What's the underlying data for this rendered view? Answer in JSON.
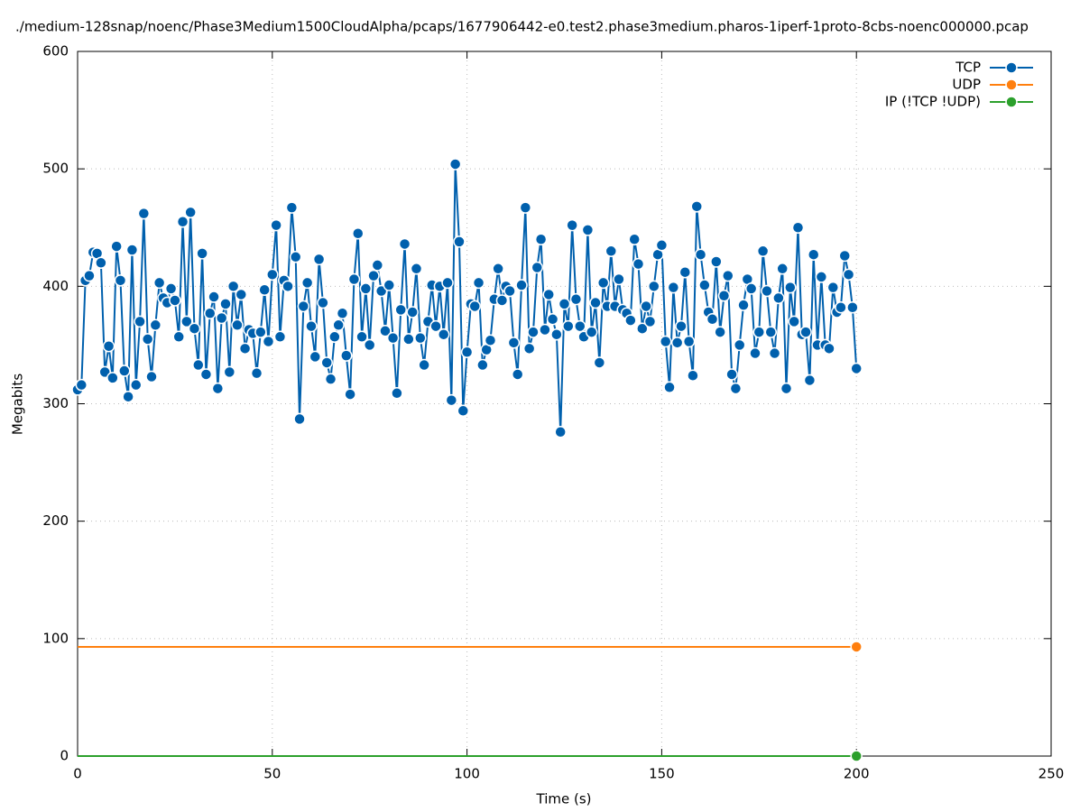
{
  "chart_data": {
    "type": "line",
    "title": "./medium-128snap/noenc/Phase3Medium1500CloudAlpha/pcaps/1677906442-e0.test2.phase3medium.pharos-1iperf-1proto-8cbs-noenc000000.pcap",
    "x_label": "Time (s)",
    "y_label": "Megabits",
    "xlim": [
      0,
      250
    ],
    "xticks": [
      0,
      50,
      100,
      150,
      200,
      250
    ],
    "ylim": [
      0,
      600
    ],
    "yticks": [
      0,
      100,
      200,
      300,
      400,
      500,
      600
    ],
    "grid": true,
    "legend": "top-right",
    "x": [
      0,
      1,
      2,
      3,
      4,
      5,
      6,
      7,
      8,
      9,
      10,
      11,
      12,
      13,
      14,
      15,
      16,
      17,
      18,
      19,
      20,
      21,
      22,
      23,
      24,
      25,
      26,
      27,
      28,
      29,
      30,
      31,
      32,
      33,
      34,
      35,
      36,
      37,
      38,
      39,
      40,
      41,
      42,
      43,
      44,
      45,
      46,
      47,
      48,
      49,
      50,
      51,
      52,
      53,
      54,
      55,
      56,
      57,
      58,
      59,
      60,
      61,
      62,
      63,
      64,
      65,
      66,
      67,
      68,
      69,
      70,
      71,
      72,
      73,
      74,
      75,
      76,
      77,
      78,
      79,
      80,
      81,
      82,
      83,
      84,
      85,
      86,
      87,
      88,
      89,
      90,
      91,
      92,
      93,
      94,
      95,
      96,
      97,
      98,
      99,
      100,
      101,
      102,
      103,
      104,
      105,
      106,
      107,
      108,
      109,
      110,
      111,
      112,
      113,
      114,
      115,
      116,
      117,
      118,
      119,
      120,
      121,
      122,
      123,
      124,
      125,
      126,
      127,
      128,
      129,
      130,
      131,
      132,
      133,
      134,
      135,
      136,
      137,
      138,
      139,
      140,
      141,
      142,
      143,
      144,
      145,
      146,
      147,
      148,
      149,
      150,
      151,
      152,
      153,
      154,
      155,
      156,
      157,
      158,
      159,
      160,
      161,
      162,
      163,
      164,
      165,
      166,
      167,
      168,
      169,
      170,
      171,
      172,
      173,
      174,
      175,
      176,
      177,
      178,
      179,
      180,
      181,
      182,
      183,
      184,
      185,
      186,
      187,
      188,
      189,
      190,
      191,
      192,
      193,
      194,
      195,
      196,
      197,
      198,
      199,
      200
    ],
    "series": [
      {
        "name": "TCP",
        "color": "#0060ad",
        "values": [
          312,
          316,
          405,
          409,
          429,
          428,
          420,
          327,
          349,
          322,
          434,
          405,
          328,
          306,
          431,
          316,
          370,
          462,
          355,
          323,
          367,
          403,
          390,
          386,
          398,
          388,
          357,
          455,
          370,
          463,
          364,
          333,
          428,
          325,
          377,
          391,
          313,
          373,
          385,
          327,
          400,
          367,
          393,
          347,
          363,
          360,
          326,
          361,
          397,
          353,
          410,
          452,
          357,
          405,
          400,
          467,
          425,
          287,
          383,
          403,
          366,
          340,
          423,
          386,
          335,
          321,
          357,
          367,
          377,
          341,
          308,
          406,
          445,
          357,
          398,
          350,
          409,
          418,
          396,
          362,
          401,
          356,
          309,
          380,
          436,
          355,
          378,
          415,
          356,
          333,
          370,
          401,
          366,
          400,
          359,
          403,
          303,
          504,
          438,
          294,
          344,
          385,
          383,
          403,
          333,
          346,
          354,
          389,
          415,
          388,
          400,
          396,
          352,
          325,
          401,
          467,
          347,
          361,
          416,
          440,
          363,
          393,
          372,
          359,
          276,
          385,
          366,
          452,
          389,
          366,
          357,
          448,
          361,
          386,
          335,
          403,
          383,
          430,
          383,
          406,
          380,
          377,
          371,
          440,
          419,
          364,
          383,
          370,
          400,
          427,
          435,
          353,
          314,
          399,
          352,
          366,
          412,
          353,
          324,
          468,
          427,
          401,
          378,
          372,
          421,
          361,
          392,
          409,
          325,
          313,
          350,
          384,
          406,
          398,
          343,
          361,
          430,
          396,
          361,
          343,
          390,
          415,
          313,
          399,
          370,
          450,
          359,
          361,
          320,
          427,
          350,
          408,
          350,
          347,
          399,
          378,
          382,
          426,
          410,
          382,
          330
        ]
      },
      {
        "name": "UDP",
        "color": "#ff7f0e",
        "values": [
          93,
          93,
          93,
          93,
          93,
          93,
          93,
          93,
          93,
          93,
          93,
          93,
          93,
          93,
          93,
          93,
          93,
          93,
          93,
          93,
          93,
          93,
          93,
          93,
          93,
          93,
          93,
          93,
          93,
          93,
          93,
          93,
          93,
          93,
          93,
          93,
          93,
          93,
          93,
          93,
          93,
          93,
          93,
          93,
          93,
          93,
          93,
          93,
          93,
          93,
          93,
          93,
          93,
          93,
          93,
          93,
          93,
          93,
          93,
          93,
          93,
          93,
          93,
          93,
          93,
          93,
          93,
          93,
          93,
          93,
          93,
          93,
          93,
          93,
          93,
          93,
          93,
          93,
          93,
          93,
          93,
          93,
          93,
          93,
          93,
          93,
          93,
          93,
          93,
          93,
          93,
          93,
          93,
          93,
          93,
          93,
          93,
          93,
          93,
          93,
          93,
          93,
          93,
          93,
          93,
          93,
          93,
          93,
          93,
          93,
          93,
          93,
          93,
          93,
          93,
          93,
          93,
          93,
          93,
          93,
          93,
          93,
          93,
          93,
          93,
          93,
          93,
          93,
          93,
          93,
          93,
          93,
          93,
          93,
          93,
          93,
          93,
          93,
          93,
          93,
          93,
          93,
          93,
          93,
          93,
          93,
          93,
          93,
          93,
          93,
          93,
          93,
          93,
          93,
          93,
          93,
          93,
          93,
          93,
          93,
          93,
          93,
          93,
          93,
          93,
          93,
          93,
          93,
          93,
          93,
          93,
          93,
          93,
          93,
          93,
          93,
          93,
          93,
          93,
          93,
          93,
          93,
          93,
          93,
          93,
          93,
          93,
          93,
          93,
          93,
          93,
          93,
          93,
          93,
          93,
          93,
          93,
          93,
          93,
          93,
          93
        ]
      },
      {
        "name": "IP (!TCP  !UDP)",
        "color": "#2ca02c",
        "values": [
          0,
          0,
          0,
          0,
          0,
          0,
          0,
          0,
          0,
          0,
          0,
          0,
          0,
          0,
          0,
          0,
          0,
          0,
          0,
          0,
          0,
          0,
          0,
          0,
          0,
          0,
          0,
          0,
          0,
          0,
          0,
          0,
          0,
          0,
          0,
          0,
          0,
          0,
          0,
          0,
          0,
          0,
          0,
          0,
          0,
          0,
          0,
          0,
          0,
          0,
          0,
          0,
          0,
          0,
          0,
          0,
          0,
          0,
          0,
          0,
          0,
          0,
          0,
          0,
          0,
          0,
          0,
          0,
          0,
          0,
          0,
          0,
          0,
          0,
          0,
          0,
          0,
          0,
          0,
          0,
          0,
          0,
          0,
          0,
          0,
          0,
          0,
          0,
          0,
          0,
          0,
          0,
          0,
          0,
          0,
          0,
          0,
          0,
          0,
          0,
          0,
          0,
          0,
          0,
          0,
          0,
          0,
          0,
          0,
          0,
          0,
          0,
          0,
          0,
          0,
          0,
          0,
          0,
          0,
          0,
          0,
          0,
          0,
          0,
          0,
          0,
          0,
          0,
          0,
          0,
          0,
          0,
          0,
          0,
          0,
          0,
          0,
          0,
          0,
          0,
          0,
          0,
          0,
          0,
          0,
          0,
          0,
          0,
          0,
          0,
          0,
          0,
          0,
          0,
          0,
          0,
          0,
          0,
          0,
          0,
          0,
          0,
          0,
          0,
          0,
          0,
          0,
          0,
          0,
          0,
          0,
          0,
          0,
          0,
          0,
          0,
          0,
          0,
          0,
          0,
          0,
          0,
          0,
          0,
          0,
          0,
          0,
          0,
          0,
          0,
          0,
          0,
          0,
          0,
          0,
          0,
          0,
          0,
          0,
          0,
          0
        ]
      }
    ]
  }
}
